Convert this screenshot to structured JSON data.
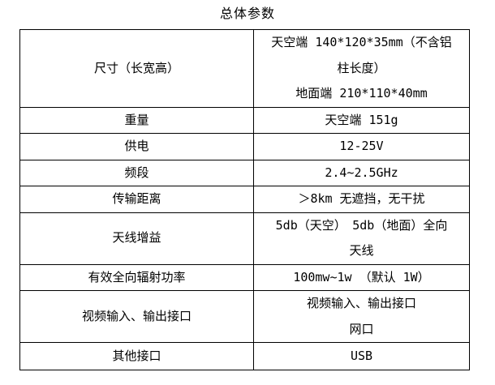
{
  "page": {
    "title": "总体参数"
  },
  "table": {
    "rows": [
      {
        "label": "尺寸（长宽高）",
        "value_lines": [
          "天空端 140*120*35mm（不含铝",
          "柱长度）",
          "地面端 210*110*40mm"
        ]
      },
      {
        "label": "重量",
        "value_lines": [
          "天空端 151g"
        ]
      },
      {
        "label": "供电",
        "value_lines": [
          "12-25V"
        ]
      },
      {
        "label": "频段",
        "value_lines": [
          "2.4~2.5GHz"
        ]
      },
      {
        "label": "传输距离",
        "value_lines": [
          "＞8km 无遮挡，无干扰"
        ]
      },
      {
        "label": "天线增益",
        "value_lines": [
          "5db（天空）　5db（地面）全向",
          "天线"
        ]
      },
      {
        "label": "有效全向辐射功率",
        "value_lines": [
          "100mw~1w （默认 1W）"
        ]
      },
      {
        "label": "视频输入、输出接口",
        "value_lines": [
          "视频输入、输出接口",
          "网口"
        ]
      },
      {
        "label": "其他接口",
        "value_lines": [
          "USB"
        ]
      }
    ]
  },
  "colors": {
    "text": "#000000",
    "border": "#000000",
    "background": "#ffffff"
  }
}
